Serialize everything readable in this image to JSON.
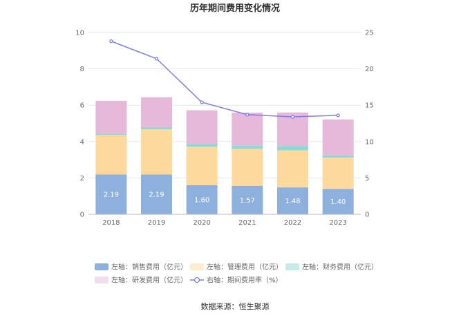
{
  "chart_data": {
    "type": "bar",
    "title": "历年期间费用变化情况",
    "categories": [
      "2018",
      "2019",
      "2020",
      "2021",
      "2022",
      "2023"
    ],
    "stacked": true,
    "left_axis": {
      "ticks": [
        "0",
        "2",
        "4",
        "6",
        "8",
        "10"
      ],
      "range": [
        0,
        10
      ]
    },
    "right_axis": {
      "ticks": [
        "0",
        "5",
        "10",
        "15",
        "20",
        "25"
      ],
      "range": [
        0,
        25
      ]
    },
    "series": [
      {
        "name": "左轴：销售费用（亿元）",
        "type": "bar",
        "color": "#8eb0dd",
        "values": [
          2.19,
          2.19,
          1.6,
          1.57,
          1.48,
          1.4
        ],
        "labels": [
          "2.19",
          "2.19",
          "1.60",
          "1.57",
          "1.48",
          "1.40"
        ]
      },
      {
        "name": "左轴：管理费用（亿元）",
        "type": "bar",
        "color": "#fdd99e",
        "values": [
          2.17,
          2.49,
          2.12,
          2.04,
          2.04,
          1.72
        ]
      },
      {
        "name": "左轴：财务费用（亿元）",
        "type": "bar",
        "color": "#8dd8d8",
        "values": [
          0.08,
          0.12,
          0.14,
          0.18,
          0.24,
          0.12
        ]
      },
      {
        "name": "左轴：研发费用（亿元）",
        "type": "bar",
        "color": "#e6b9db",
        "values": [
          1.8,
          1.64,
          1.86,
          1.8,
          1.84,
          1.98
        ]
      },
      {
        "name": "右轴：期间费用率（%）",
        "type": "line",
        "color": "#7b7ef0",
        "values": [
          23.8,
          21.4,
          15.4,
          13.7,
          13.4,
          13.6
        ]
      }
    ],
    "grid": true,
    "legend_position": "bottom"
  },
  "source": "数据来源：恒生聚源"
}
